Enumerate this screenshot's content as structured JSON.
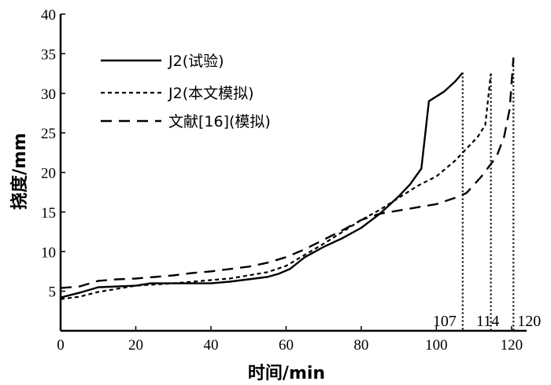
{
  "chart_data": {
    "type": "line",
    "xlabel": "时间/min",
    "ylabel": "挠度/mm",
    "xlim": [
      0,
      124
    ],
    "ylim": [
      0,
      40
    ],
    "xticks": [
      0,
      20,
      40,
      60,
      80,
      100,
      120
    ],
    "yticks": [
      5,
      10,
      15,
      20,
      25,
      30,
      35,
      40
    ],
    "grid": false,
    "legend_position": "top-left",
    "series": [
      {
        "name": "J2(试验)",
        "style": "solid",
        "points": [
          [
            0,
            4.2
          ],
          [
            5,
            4.8
          ],
          [
            10,
            5.5
          ],
          [
            20,
            5.7
          ],
          [
            24,
            6.0
          ],
          [
            30,
            6.0
          ],
          [
            40,
            6.0
          ],
          [
            45,
            6.2
          ],
          [
            50,
            6.5
          ],
          [
            55,
            6.8
          ],
          [
            58,
            7.2
          ],
          [
            61,
            7.8
          ],
          [
            65,
            9.3
          ],
          [
            70,
            10.6
          ],
          [
            75,
            11.7
          ],
          [
            80,
            13.0
          ],
          [
            85,
            14.8
          ],
          [
            90,
            17.0
          ],
          [
            93,
            18.5
          ],
          [
            96,
            20.5
          ],
          [
            98,
            29.0
          ],
          [
            102,
            30.2
          ],
          [
            105,
            31.5
          ],
          [
            107,
            32.6
          ]
        ]
      },
      {
        "name": "J2(本文模拟)",
        "style": "dotted",
        "points": [
          [
            0,
            4.0
          ],
          [
            5,
            4.3
          ],
          [
            10,
            4.9
          ],
          [
            15,
            5.3
          ],
          [
            20,
            5.7
          ],
          [
            30,
            6.0
          ],
          [
            40,
            6.4
          ],
          [
            45,
            6.6
          ],
          [
            50,
            7.0
          ],
          [
            55,
            7.4
          ],
          [
            60,
            8.2
          ],
          [
            65,
            9.6
          ],
          [
            70,
            11.0
          ],
          [
            75,
            12.5
          ],
          [
            80,
            14.0
          ],
          [
            85,
            15.3
          ],
          [
            90,
            16.8
          ],
          [
            95,
            18.3
          ],
          [
            100,
            19.5
          ],
          [
            105,
            21.5
          ],
          [
            108,
            23.0
          ],
          [
            111,
            24.5
          ],
          [
            113,
            26.0
          ],
          [
            114.5,
            32.5
          ]
        ]
      },
      {
        "name": "文献[16](模拟)",
        "style": "dashed",
        "points": [
          [
            0,
            5.4
          ],
          [
            5,
            5.6
          ],
          [
            10,
            6.3
          ],
          [
            15,
            6.5
          ],
          [
            20,
            6.6
          ],
          [
            25,
            6.8
          ],
          [
            30,
            7.0
          ],
          [
            35,
            7.3
          ],
          [
            40,
            7.5
          ],
          [
            45,
            7.8
          ],
          [
            50,
            8.1
          ],
          [
            55,
            8.6
          ],
          [
            60,
            9.3
          ],
          [
            65,
            10.3
          ],
          [
            70,
            11.5
          ],
          [
            75,
            12.7
          ],
          [
            80,
            14.0
          ],
          [
            85,
            14.8
          ],
          [
            90,
            15.2
          ],
          [
            95,
            15.6
          ],
          [
            100,
            16.0
          ],
          [
            105,
            16.8
          ],
          [
            108,
            17.4
          ],
          [
            112,
            19.5
          ],
          [
            116,
            22.0
          ],
          [
            118,
            24.5
          ],
          [
            119.5,
            28.0
          ],
          [
            120.5,
            34.5
          ]
        ]
      }
    ],
    "failure_times": [
      107,
      114,
      120
    ]
  }
}
